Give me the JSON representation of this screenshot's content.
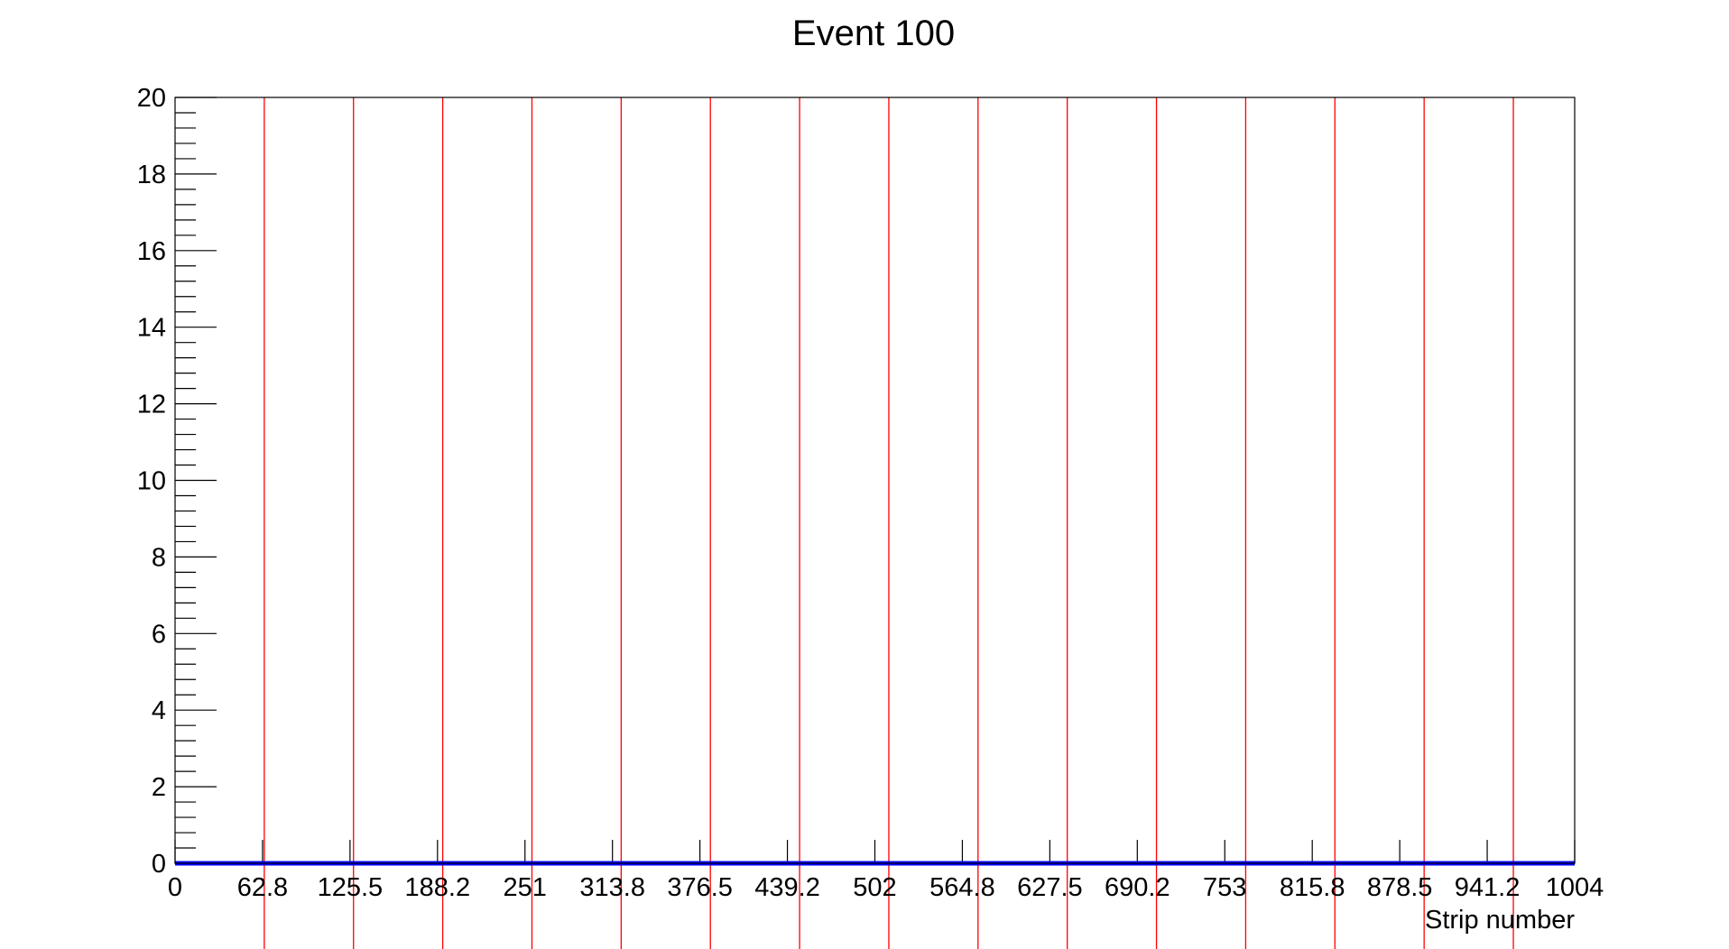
{
  "chart_data": {
    "type": "line",
    "title": "Event 100",
    "xlabel": "Strip number",
    "ylabel": "",
    "xlim": [
      0,
      1004
    ],
    "ylim": [
      0,
      20
    ],
    "x_ticks": [
      "0",
      "62.8",
      "125.5",
      "188.2",
      "251",
      "313.8",
      "376.5",
      "439.2",
      "502",
      "564.8",
      "627.5",
      "690.2",
      "753",
      "815.8",
      "878.5",
      "941.2",
      "1004"
    ],
    "x_tick_values": [
      0,
      62.75,
      125.5,
      188.25,
      251,
      313.75,
      376.5,
      439.25,
      502,
      564.75,
      627.5,
      690.25,
      753,
      815.75,
      878.5,
      941.25,
      1004
    ],
    "y_ticks": [
      "0",
      "2",
      "4",
      "6",
      "8",
      "10",
      "12",
      "14",
      "16",
      "18",
      "20"
    ],
    "y_tick_values": [
      0,
      2,
      4,
      6,
      8,
      10,
      12,
      14,
      16,
      18,
      20
    ],
    "series": [
      {
        "color": "#0000ff",
        "x": [
          0,
          1004
        ],
        "values": [
          0,
          0
        ]
      }
    ],
    "vertical_markers": {
      "color": "#ff0000",
      "x": [
        64,
        128,
        192,
        256,
        320,
        384,
        448,
        512,
        576,
        640,
        704,
        768,
        832,
        896,
        960
      ]
    },
    "grid": false,
    "legend": "none"
  }
}
